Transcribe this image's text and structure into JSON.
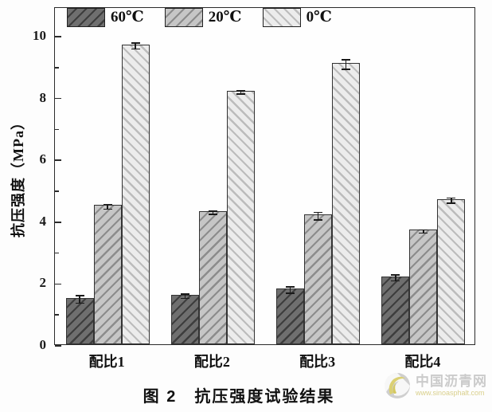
{
  "chart_data": {
    "type": "bar",
    "categories": [
      "配比1",
      "配比2",
      "配比3",
      "配比4"
    ],
    "series": [
      {
        "name": "60℃",
        "values": [
          1.5,
          1.6,
          1.8,
          2.2
        ],
        "errors": [
          0.12,
          0.07,
          0.1,
          0.1
        ],
        "fill": "#6f6f6f",
        "hatch": "#3d3d3d",
        "hatch_dir": "fwd"
      },
      {
        "name": "20℃",
        "values": [
          4.5,
          4.3,
          4.2,
          3.7
        ],
        "errors": [
          0.08,
          0.05,
          0.12,
          0.05
        ],
        "fill": "#c6c6c6",
        "hatch": "#8c8c8c",
        "hatch_dir": "fwd"
      },
      {
        "name": "0℃",
        "values": [
          9.7,
          8.2,
          9.1,
          4.7
        ],
        "errors": [
          0.1,
          0.05,
          0.15,
          0.08
        ],
        "fill": "#ececec",
        "hatch": "#bcbcbc",
        "hatch_dir": "back"
      }
    ],
    "title": "图 2　抗压强度试验结果",
    "xlabel": "",
    "ylabel": "抗压强度（MPa）",
    "ylim": [
      0,
      10.93
    ],
    "yticks": [
      0,
      2,
      4,
      6,
      8,
      10
    ],
    "yminorticks": [
      1,
      3,
      5,
      7,
      9
    ],
    "grid": false,
    "legend_position": "top-inside",
    "error_bars": true
  },
  "caption": "图 2　抗压强度试验结果",
  "watermark": {
    "name": "中国沥青网",
    "url": "www.sinoasphalt.com"
  }
}
